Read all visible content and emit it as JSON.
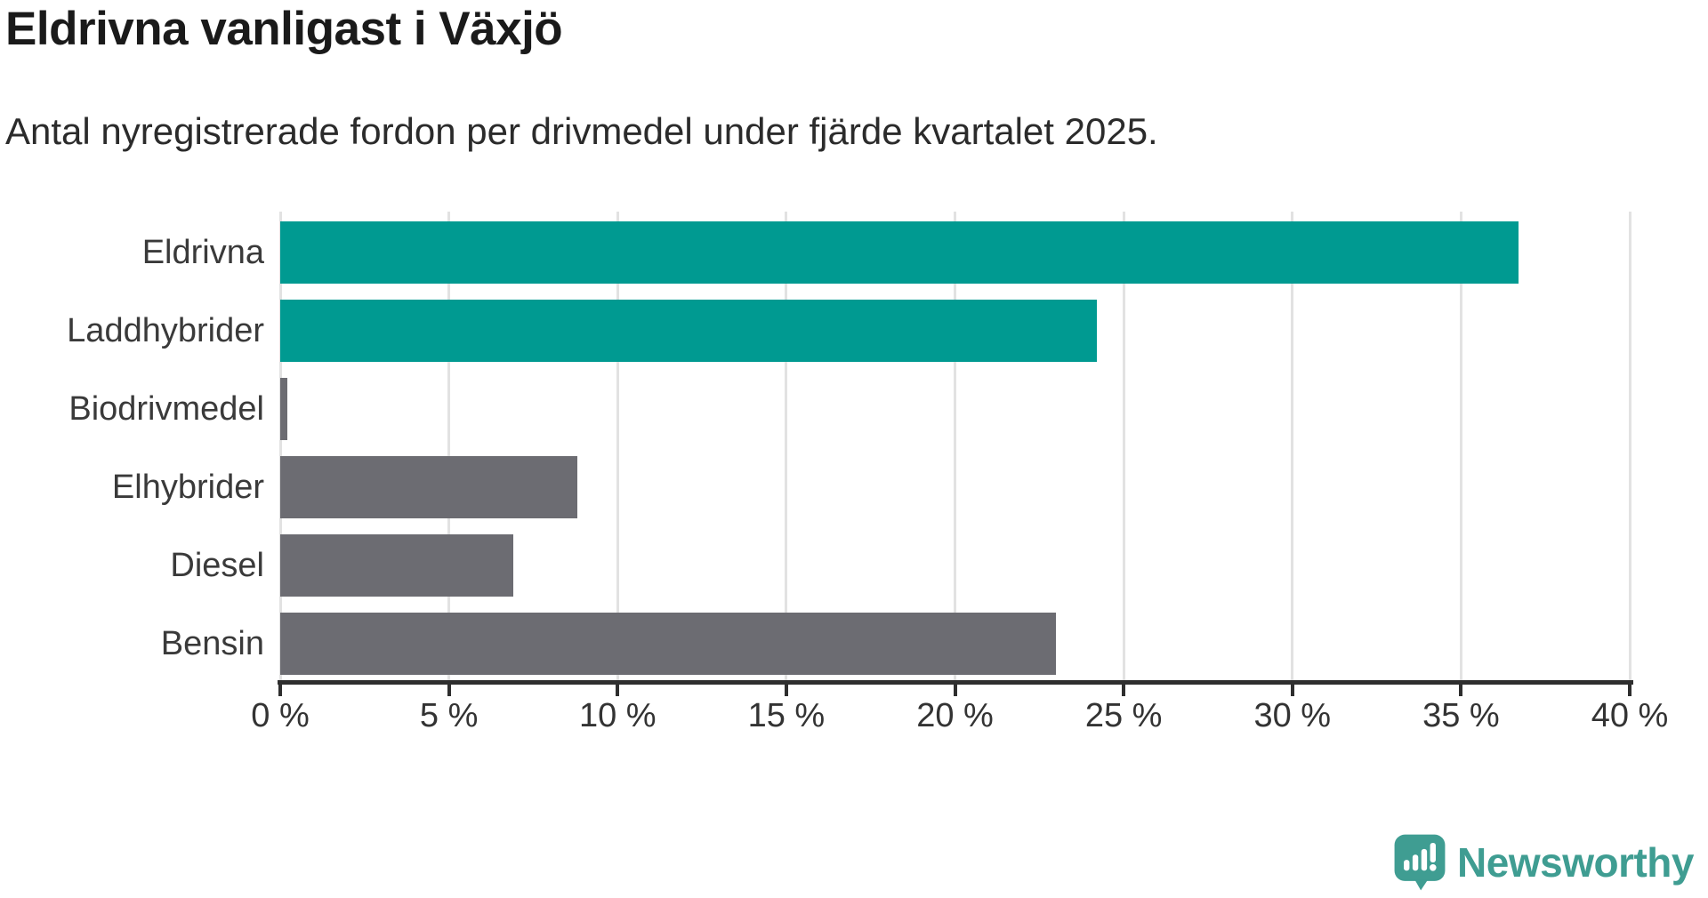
{
  "header": {
    "title": "Eldrivna vanligast i Växjö",
    "subtitle": "Antal nyregistrerade fordon per drivmedel under fjärde kvartalet 2025."
  },
  "colors": {
    "teal": "#009a91",
    "gray": "#6c6c72",
    "gridline": "#e2e2e2",
    "axis": "#2e2e2e",
    "title_text": "#1a1a1a",
    "subtitle_text": "#2b2b2b",
    "label_text": "#3a3a3a",
    "logo_teal": "#3f9d92"
  },
  "chart_data": {
    "type": "bar",
    "orientation": "horizontal",
    "title": "Eldrivna vanligast i Växjö",
    "subtitle": "Antal nyregistrerade fordon per drivmedel under fjärde kvartalet 2025.",
    "categories": [
      "Eldrivna",
      "Laddhybrider",
      "Biodrivmedel",
      "Elhybrider",
      "Diesel",
      "Bensin"
    ],
    "values": [
      36.7,
      24.2,
      0.2,
      8.8,
      6.9,
      23.0
    ],
    "unit": "%",
    "series_colors": [
      "#009a91",
      "#009a91",
      "#6c6c72",
      "#6c6c72",
      "#6c6c72",
      "#6c6c72"
    ],
    "xlabel": "",
    "ylabel": "",
    "xlim": [
      0,
      40
    ],
    "x_ticks": [
      0,
      5,
      10,
      15,
      20,
      25,
      30,
      35,
      40
    ],
    "x_tick_labels": [
      "0 %",
      "5 %",
      "10 %",
      "15 %",
      "20 %",
      "25 %",
      "30 %",
      "35 %",
      "40 %"
    ],
    "grid": true,
    "legend": false
  },
  "branding": {
    "logo_text": "Newsworthy",
    "logo_icon": "speech-bubble-bar-chart-exclamation"
  }
}
